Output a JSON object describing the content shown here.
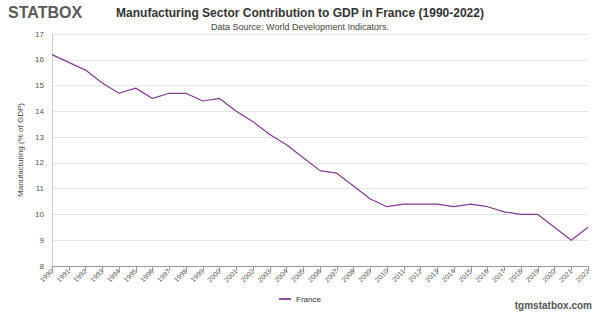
{
  "chart_data": {
    "type": "line",
    "title": "Manufacturing Sector Contribution to GDP in France (1990-2022)",
    "subtitle": "Data Source: World Development Indicators.",
    "y_label": "Manufacturing (% of GDP)",
    "annotations": [
      "STATBOX",
      "tgmstatbox.com"
    ],
    "categories": [
      "1990",
      "1991",
      "1992",
      "1993",
      "1994",
      "1995",
      "1996",
      "1997",
      "1998",
      "1999",
      "2000",
      "2001",
      "2002",
      "2003",
      "2004",
      "2005",
      "2006",
      "2007",
      "2008",
      "2009",
      "2010",
      "2011",
      "2012",
      "2013",
      "2014",
      "2015",
      "2016",
      "2017",
      "2018",
      "2019",
      "2020",
      "2021",
      "2022"
    ],
    "series": [
      {
        "name": "France",
        "color": "#803d8f",
        "values": [
          16.2,
          15.9,
          15.6,
          15.1,
          14.7,
          14.9,
          14.5,
          14.7,
          14.7,
          14.4,
          14.5,
          14.0,
          13.6,
          13.1,
          12.7,
          12.2,
          11.7,
          11.6,
          11.1,
          10.6,
          10.3,
          10.4,
          10.4,
          10.4,
          10.3,
          10.4,
          10.3,
          10.1,
          10.0,
          10.0,
          9.5,
          9.0,
          9.5
        ]
      }
    ],
    "ylim": [
      8,
      17
    ],
    "yticks": [
      8,
      9,
      10,
      11,
      12,
      13,
      14,
      15,
      16,
      17
    ],
    "grid": true,
    "legend": "bottom"
  }
}
